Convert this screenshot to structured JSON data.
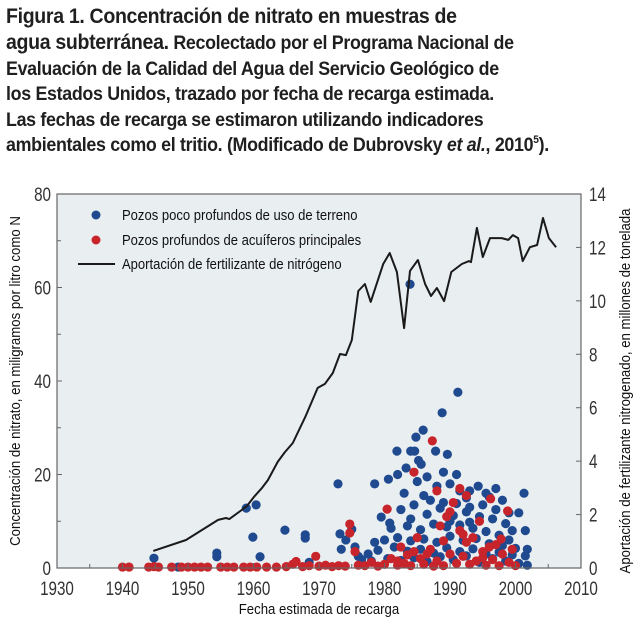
{
  "caption": {
    "figure_label": "Figura 1. Concentración de nitrato en muestras de",
    "figure_label_line2": "agua subterránea.",
    "line2_rest": " Recolectado por el Programa Nacional de",
    "line3": "Evaluación de la Calidad del Agua del Servicio Geológico de",
    "line4": "los Estados Unidos, trazado por fecha de recarga estimada.",
    "line5": "Las fechas de recarga se estimaron utilizando indicadores",
    "line6_a": "ambientales como el tritio. (Modificado de Dubrovsky ",
    "line6_italic": "et al.",
    "line6_b": ", 2010",
    "line6_sup": "5",
    "line6_end": ")."
  },
  "colors": {
    "shallow_wells": "#1f4a8f",
    "deep_wells": "#c8242b",
    "fertilizer_line": "#1a1a1a",
    "plot_background": "#e9eef0",
    "axis": "#666666"
  },
  "chart_data": {
    "type": "scatter",
    "title": "Figura 1. Concentración de nitrato en muestras de agua subterránea",
    "xlabel": "Fecha estimada de recarga",
    "ylabel": "Concentración de nitrato, en miligramos por litro como N",
    "y2label": "Aportación de fertilizante nitrogenado, en millones de tonelada",
    "xlim": [
      1930,
      2010
    ],
    "ylim": [
      0,
      80
    ],
    "y2lim": [
      0,
      14
    ],
    "xticks": [
      1930,
      1940,
      1950,
      1960,
      1970,
      1980,
      1990,
      2000,
      2010
    ],
    "yticks": [
      0,
      20,
      40,
      60,
      80
    ],
    "y2ticks": [
      0,
      2,
      4,
      6,
      8,
      10,
      12,
      14
    ],
    "grid": false,
    "legend_position": "top-left",
    "legend": [
      {
        "label": "Pozos poco profundos de uso de terreno",
        "kind": "dot",
        "series": "shallow"
      },
      {
        "label": "Pozos profundos de acuíferos principales",
        "kind": "dot",
        "series": "deep"
      },
      {
        "label": "Aportación de fertilizante de nitrógeno",
        "kind": "line",
        "series": "fertilizer"
      }
    ],
    "series": [
      {
        "name": "Pozos poco profundos de uso de terreno",
        "id": "shallow",
        "axis": "left",
        "points": [
          [
            1944.8,
            2.1
          ],
          [
            1948.5,
            0.2
          ],
          [
            1954.4,
            3.2
          ],
          [
            1954.4,
            2.4
          ],
          [
            1958.9,
            12.8
          ],
          [
            1960.4,
            13.5
          ],
          [
            1959.9,
            6.6
          ],
          [
            1961.0,
            2.4
          ],
          [
            1964.8,
            8.1
          ],
          [
            1967.9,
            7.1
          ],
          [
            1967.9,
            6.4
          ],
          [
            1968.5,
            1.2
          ],
          [
            1972.9,
            18.0
          ],
          [
            1978.5,
            18.0
          ],
          [
            1973.4,
            4.0
          ],
          [
            1973.2,
            7.3
          ],
          [
            1975.0,
            8.3
          ],
          [
            1974.1,
            6.0
          ],
          [
            1975.5,
            4.5
          ],
          [
            1976.5,
            1.8
          ],
          [
            1977.5,
            3.0
          ],
          [
            1978.5,
            5.5
          ],
          [
            1979.5,
            10.9
          ],
          [
            1980.8,
            9.6
          ],
          [
            1981.9,
            25.0
          ],
          [
            1984.8,
            28.0
          ],
          [
            1985.9,
            29.5
          ],
          [
            1988.8,
            33.2
          ],
          [
            1991.2,
            37.6
          ],
          [
            1983.9,
            60.7
          ],
          [
            1984.0,
            25.0
          ],
          [
            1984.6,
            25.0
          ],
          [
            1987.8,
            25.0
          ],
          [
            1989.6,
            24.3
          ],
          [
            1985.2,
            23.0
          ],
          [
            1985.6,
            22.2
          ],
          [
            1983.3,
            21.4
          ],
          [
            1982.0,
            20.0
          ],
          [
            1980.6,
            19.0
          ],
          [
            1983.0,
            16.0
          ],
          [
            1986.0,
            15.5
          ],
          [
            1988.0,
            17.5
          ],
          [
            1990.0,
            18.0
          ],
          [
            1991.5,
            16.5
          ],
          [
            1992.5,
            15.0
          ],
          [
            1994.3,
            17.5
          ],
          [
            1996.0,
            15.2
          ],
          [
            1998.0,
            14.5
          ],
          [
            2001.3,
            16.0
          ],
          [
            2000.5,
            11.8
          ],
          [
            2001.5,
            8.0
          ],
          [
            2001.8,
            4.0
          ],
          [
            2001.5,
            2.6
          ],
          [
            2001.8,
            0.6
          ],
          [
            1982.5,
            12.5
          ],
          [
            1984.5,
            13.5
          ],
          [
            1986.5,
            11.5
          ],
          [
            1988.5,
            12.8
          ],
          [
            1990.5,
            11.2
          ],
          [
            1992.5,
            12.0
          ],
          [
            1994.5,
            11.0
          ],
          [
            1996.5,
            10.5
          ],
          [
            1998.5,
            9.5
          ],
          [
            1999.5,
            8.0
          ],
          [
            1981.0,
            8.5
          ],
          [
            1983.5,
            9.0
          ],
          [
            1985.5,
            8.2
          ],
          [
            1987.5,
            9.4
          ],
          [
            1989.5,
            8.8
          ],
          [
            1991.5,
            9.2
          ],
          [
            1993.5,
            8.5
          ],
          [
            1995.5,
            7.8
          ],
          [
            1997.5,
            7.0
          ],
          [
            1999.0,
            6.0
          ],
          [
            1980.0,
            6.0
          ],
          [
            1982.0,
            6.5
          ],
          [
            1984.0,
            5.8
          ],
          [
            1986.0,
            6.2
          ],
          [
            1988.0,
            5.5
          ],
          [
            1990.0,
            6.8
          ],
          [
            1992.0,
            5.9
          ],
          [
            1994.0,
            6.3
          ],
          [
            1996.0,
            5.2
          ],
          [
            1998.0,
            4.8
          ],
          [
            2000.0,
            4.2
          ],
          [
            1979.0,
            3.8
          ],
          [
            1981.5,
            4.5
          ],
          [
            1983.5,
            3.6
          ],
          [
            1985.5,
            4.0
          ],
          [
            1987.5,
            3.2
          ],
          [
            1989.5,
            4.3
          ],
          [
            1991.5,
            3.5
          ],
          [
            1993.5,
            4.1
          ],
          [
            1995.5,
            3.0
          ],
          [
            1997.5,
            3.4
          ],
          [
            1999.5,
            2.8
          ],
          [
            1976.0,
            2.5
          ],
          [
            1978.0,
            1.5
          ],
          [
            1980.5,
            2.0
          ],
          [
            1982.5,
            1.6
          ],
          [
            1984.5,
            2.2
          ],
          [
            1986.5,
            1.4
          ],
          [
            1988.5,
            2.4
          ],
          [
            1990.5,
            1.8
          ],
          [
            1992.5,
            2.6
          ],
          [
            1994.5,
            1.2
          ],
          [
            1996.5,
            2.0
          ],
          [
            1998.5,
            1.5
          ],
          [
            2000.5,
            1.0
          ],
          [
            1987.0,
            14.5
          ],
          [
            1989.0,
            14.0
          ],
          [
            1991.0,
            13.8
          ],
          [
            1993.0,
            13.0
          ],
          [
            1995.0,
            13.5
          ],
          [
            1985.0,
            18.5
          ],
          [
            1989.0,
            20.5
          ],
          [
            1991.0,
            20.0
          ],
          [
            1986.5,
            19.5
          ],
          [
            1993.0,
            16.5
          ],
          [
            1997.0,
            12.5
          ],
          [
            1999.0,
            11.8
          ],
          [
            1997.0,
            17.0
          ],
          [
            1995.5,
            16.0
          ],
          [
            1984.0,
            10.5
          ],
          [
            1990.0,
            10.0
          ],
          [
            1993.0,
            9.8
          ]
        ]
      },
      {
        "name": "Pozos profundos de acuíferos principales",
        "id": "deep",
        "axis": "left",
        "points": [
          [
            1940.0,
            0.2
          ],
          [
            1941.0,
            0.2
          ],
          [
            1944.0,
            0.2
          ],
          [
            1944.8,
            0.3
          ],
          [
            1945.5,
            0.2
          ],
          [
            1947.5,
            0.2
          ],
          [
            1949.0,
            0.2
          ],
          [
            1950.0,
            0.2
          ],
          [
            1951.0,
            0.2
          ],
          [
            1952.0,
            0.2
          ],
          [
            1953.0,
            0.2
          ],
          [
            1955.0,
            0.2
          ],
          [
            1956.0,
            0.2
          ],
          [
            1957.0,
            0.2
          ],
          [
            1958.5,
            0.2
          ],
          [
            1959.5,
            0.2
          ],
          [
            1960.5,
            0.2
          ],
          [
            1962.0,
            0.2
          ],
          [
            1963.5,
            0.2
          ],
          [
            1965.0,
            0.3
          ],
          [
            1966.0,
            0.8
          ],
          [
            1966.5,
            1.4
          ],
          [
            1967.5,
            0.3
          ],
          [
            1968.5,
            0.5
          ],
          [
            1969.5,
            2.5
          ],
          [
            1970.0,
            0.4
          ],
          [
            1971.0,
            0.6
          ],
          [
            1972.0,
            0.3
          ],
          [
            1973.0,
            0.5
          ],
          [
            1974.0,
            0.4
          ],
          [
            1974.7,
            9.4
          ],
          [
            1974.7,
            7.5
          ],
          [
            1975.5,
            3.5
          ],
          [
            1976.0,
            0.6
          ],
          [
            1977.0,
            0.5
          ],
          [
            1978.0,
            1.2
          ],
          [
            1979.0,
            0.4
          ],
          [
            1980.4,
            12.6
          ],
          [
            1980.0,
            0.8
          ],
          [
            1981.0,
            2.0
          ],
          [
            1982.0,
            0.6
          ],
          [
            1982.5,
            4.5
          ],
          [
            1983.0,
            1.0
          ],
          [
            1984.0,
            0.5
          ],
          [
            1985.0,
            6.5
          ],
          [
            1985.5,
            2.0
          ],
          [
            1986.0,
            0.8
          ],
          [
            1987.3,
            27.2
          ],
          [
            1987.0,
            4.0
          ],
          [
            1988.0,
            1.5
          ],
          [
            1988.5,
            9.0
          ],
          [
            1989.0,
            0.5
          ],
          [
            1989.5,
            11.0
          ],
          [
            1990.0,
            3.0
          ],
          [
            1990.5,
            14.0
          ],
          [
            1991.0,
            1.0
          ],
          [
            1991.5,
            8.0
          ],
          [
            1992.0,
            2.5
          ],
          [
            1992.5,
            5.5
          ],
          [
            1993.0,
            0.8
          ],
          [
            1993.5,
            6.5
          ],
          [
            1994.0,
            1.5
          ],
          [
            1994.5,
            10.0
          ],
          [
            1995.0,
            3.5
          ],
          [
            1995.5,
            0.6
          ],
          [
            1996.0,
            4.5
          ],
          [
            1996.2,
            14.8
          ],
          [
            1996.5,
            1.8
          ],
          [
            1997.0,
            5.0
          ],
          [
            1997.5,
            0.5
          ],
          [
            1998.0,
            3.0
          ],
          [
            1998.8,
            12.2
          ],
          [
            1999.0,
            1.2
          ],
          [
            1999.5,
            4.0
          ],
          [
            2000.0,
            0.5
          ],
          [
            1983.5,
            2.8
          ],
          [
            1986.5,
            3.0
          ],
          [
            1989.0,
            5.8
          ],
          [
            1992.0,
            7.2
          ],
          [
            1995.0,
            2.2
          ],
          [
            1997.8,
            6.2
          ],
          [
            1982.0,
            1.5
          ],
          [
            1984.5,
            3.5
          ],
          [
            1987.5,
            0.4
          ],
          [
            1990.0,
            12.0
          ],
          [
            1988.0,
            16.5
          ],
          [
            1992.5,
            15.5
          ],
          [
            1984.5,
            20.5
          ],
          [
            1991.5,
            17.0
          ]
        ]
      },
      {
        "name": "Aportación de fertilizante de nitrógeno",
        "id": "fertilizer",
        "type": "line",
        "axis": "right",
        "points": [
          [
            1944.7,
            0.64
          ],
          [
            1949.7,
            1.05
          ],
          [
            1954.6,
            1.8
          ],
          [
            1955.8,
            1.87
          ],
          [
            1956.3,
            1.83
          ],
          [
            1958.2,
            2.17
          ],
          [
            1959.0,
            2.32
          ],
          [
            1960.2,
            2.7
          ],
          [
            1961.3,
            3.0
          ],
          [
            1962.2,
            3.29
          ],
          [
            1963.7,
            3.97
          ],
          [
            1964.8,
            4.34
          ],
          [
            1966.0,
            4.68
          ],
          [
            1967.9,
            5.65
          ],
          [
            1969.8,
            6.74
          ],
          [
            1970.9,
            6.89
          ],
          [
            1972.1,
            7.3
          ],
          [
            1973.2,
            8.01
          ],
          [
            1974.1,
            7.97
          ],
          [
            1975.0,
            8.53
          ],
          [
            1976.0,
            10.37
          ],
          [
            1977.0,
            10.63
          ],
          [
            1977.9,
            9.96
          ],
          [
            1979.8,
            11.38
          ],
          [
            1980.8,
            11.79
          ],
          [
            1981.9,
            11.08
          ],
          [
            1983.0,
            8.98
          ],
          [
            1983.9,
            11.12
          ],
          [
            1985.1,
            11.53
          ],
          [
            1986.2,
            10.63
          ],
          [
            1987.1,
            10.18
          ],
          [
            1988.0,
            10.48
          ],
          [
            1989.1,
            9.99
          ],
          [
            1990.2,
            11.08
          ],
          [
            1991.8,
            11.38
          ],
          [
            1992.9,
            11.49
          ],
          [
            1993.2,
            11.45
          ],
          [
            1994.1,
            12.73
          ],
          [
            1995.0,
            11.64
          ],
          [
            1996.1,
            12.35
          ],
          [
            1997.9,
            12.35
          ],
          [
            1998.9,
            12.28
          ],
          [
            1999.6,
            12.46
          ],
          [
            2000.4,
            12.35
          ],
          [
            2001.1,
            11.49
          ],
          [
            2002.2,
            12.01
          ],
          [
            2003.3,
            12.09
          ],
          [
            2004.2,
            13.1
          ],
          [
            2005.1,
            12.35
          ],
          [
            2006.2,
            12.01
          ]
        ]
      }
    ]
  }
}
